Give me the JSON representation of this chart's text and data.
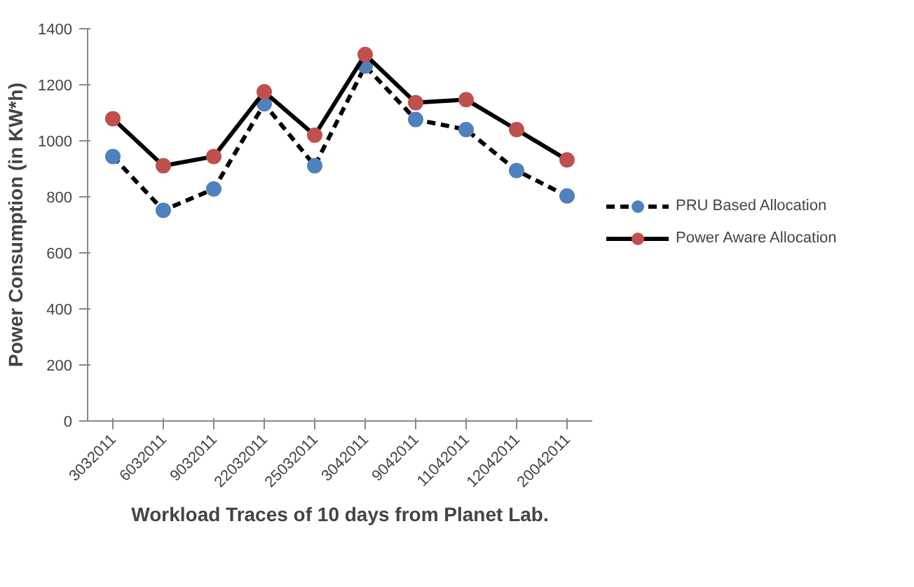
{
  "chart_data": {
    "type": "line",
    "xlabel": "Workload Traces of 10 days from Planet Lab.",
    "ylabel": "Power Consumption (in KW*h)",
    "categories": [
      "3032011",
      "6032011",
      "9032011",
      "22032011",
      "25032011",
      "3042011",
      "9042011",
      "11042011",
      "12042011",
      "20042011"
    ],
    "series": [
      {
        "name": "PRU Based Allocation",
        "color": "#4f81bd",
        "line_style": "dashed",
        "values": [
          944,
          752,
          828,
          1132,
          911,
          1267,
          1076,
          1040,
          894,
          803
        ]
      },
      {
        "name": "Power Aware Allocation",
        "color": "#c0504d",
        "line_style": "solid",
        "values": [
          1079,
          911,
          944,
          1175,
          1020,
          1308,
          1136,
          1147,
          1040,
          932
        ]
      }
    ],
    "ylim": [
      0,
      1400
    ],
    "yticks": [
      0,
      200,
      400,
      600,
      800,
      1000,
      1200,
      1400
    ],
    "legend": "right",
    "marker": "circle"
  }
}
